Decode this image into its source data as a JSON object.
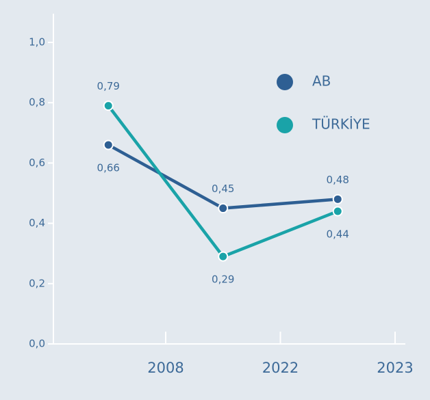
{
  "chart_data": {
    "type": "line",
    "categories": [
      "2008",
      "2022",
      "2023"
    ],
    "series": [
      {
        "name": "AB",
        "color": "#2e5f93",
        "values": [
          0.66,
          0.45,
          0.48
        ],
        "value_labels": [
          "0,66",
          "0,45",
          "0,48"
        ]
      },
      {
        "name": "TÜRKİYE",
        "color": "#1aa3a8",
        "values": [
          0.79,
          0.29,
          0.44
        ],
        "value_labels": [
          "0,79",
          "0,29",
          "0,44"
        ]
      }
    ],
    "ylim": [
      0,
      1
    ],
    "yticks": [
      {
        "value": 0,
        "label": "0,0"
      },
      {
        "value": 0.2,
        "label": "0,2"
      },
      {
        "value": 0.4,
        "label": "0,4"
      },
      {
        "value": 0.6,
        "label": "0,6"
      },
      {
        "value": 0.8,
        "label": "0,8"
      },
      {
        "value": 1,
        "label": "1,0"
      }
    ],
    "legend": "upper right"
  }
}
